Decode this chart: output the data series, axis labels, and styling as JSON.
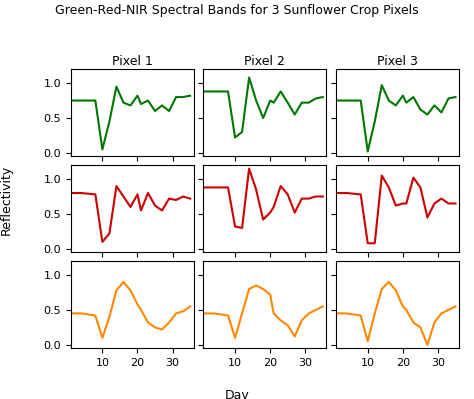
{
  "title": "Green-Red-NIR Spectral Bands for 3 Sunflower Crop Pixels",
  "col_labels": [
    "Pixel 1",
    "Pixel 2",
    "Pixel 3"
  ],
  "ylabel": "Reflectivity",
  "xlabel": "Day",
  "colors": [
    "#007700",
    "#cc0000",
    "#ff8800"
  ],
  "x": [
    1,
    4,
    8,
    10,
    12,
    14,
    16,
    18,
    20,
    21,
    23,
    25,
    27,
    29,
    31,
    33,
    35
  ],
  "green": [
    [
      0.75,
      0.75,
      0.75,
      0.05,
      0.45,
      0.95,
      0.72,
      0.68,
      0.82,
      0.7,
      0.75,
      0.6,
      0.68,
      0.6,
      0.8,
      0.8,
      0.82
    ],
    [
      0.88,
      0.88,
      0.88,
      0.22,
      0.3,
      1.08,
      0.75,
      0.5,
      0.75,
      0.72,
      0.88,
      0.72,
      0.55,
      0.72,
      0.72,
      0.78,
      0.8
    ],
    [
      0.75,
      0.75,
      0.75,
      0.02,
      0.45,
      0.97,
      0.75,
      0.68,
      0.82,
      0.72,
      0.8,
      0.62,
      0.55,
      0.68,
      0.58,
      0.78,
      0.8
    ]
  ],
  "red": [
    [
      0.8,
      0.8,
      0.78,
      0.1,
      0.22,
      0.9,
      0.75,
      0.6,
      0.78,
      0.55,
      0.8,
      0.62,
      0.55,
      0.72,
      0.7,
      0.75,
      0.72
    ],
    [
      0.88,
      0.88,
      0.88,
      0.32,
      0.3,
      1.15,
      0.85,
      0.42,
      0.52,
      0.6,
      0.9,
      0.78,
      0.52,
      0.72,
      0.72,
      0.75,
      0.75
    ],
    [
      0.8,
      0.8,
      0.78,
      0.08,
      0.08,
      1.05,
      0.88,
      0.62,
      0.65,
      0.65,
      1.02,
      0.88,
      0.45,
      0.65,
      0.72,
      0.65,
      0.65
    ]
  ],
  "nir": [
    [
      0.45,
      0.45,
      0.42,
      0.1,
      0.4,
      0.78,
      0.9,
      0.78,
      0.58,
      0.5,
      0.32,
      0.25,
      0.22,
      0.32,
      0.45,
      0.48,
      0.55
    ],
    [
      0.45,
      0.45,
      0.42,
      0.1,
      0.45,
      0.8,
      0.85,
      0.8,
      0.72,
      0.45,
      0.35,
      0.28,
      0.12,
      0.35,
      0.45,
      0.5,
      0.55
    ],
    [
      0.45,
      0.45,
      0.42,
      0.05,
      0.45,
      0.8,
      0.9,
      0.78,
      0.55,
      0.5,
      0.32,
      0.25,
      0.0,
      0.32,
      0.45,
      0.5,
      0.55
    ]
  ],
  "ylim": [
    -0.05,
    1.2
  ],
  "yticks": [
    0.0,
    0.5,
    1.0
  ],
  "xticks": [
    10,
    20,
    30
  ]
}
